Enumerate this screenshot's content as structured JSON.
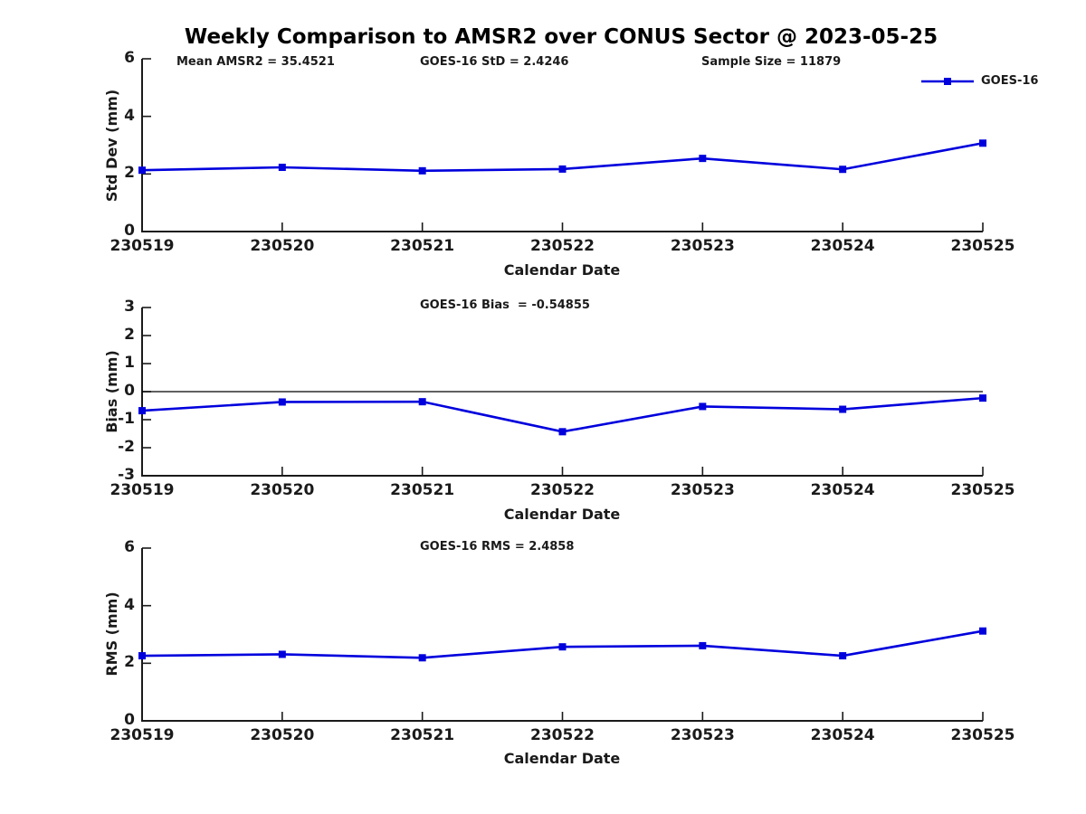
{
  "title": "Weekly Comparison to AMSR2 over CONUS Sector @ 2023-05-25",
  "colors": {
    "series": "#0000dd",
    "axis": "#1a1a1a",
    "zero_line": "#000000"
  },
  "legend": {
    "label": "GOES-16",
    "marker": "square"
  },
  "annotations": {
    "mean": "Mean AMSR2 = 35.4521",
    "std": "GOES-16 StD = 2.4246",
    "sample": "Sample Size = 11879"
  },
  "chart_data": [
    {
      "type": "line",
      "name": "std-dev-vs-date",
      "title": "",
      "ylabel": "Std Dev (mm)",
      "xlabel": "Calendar Date",
      "categories": [
        "230519",
        "230520",
        "230521",
        "230522",
        "230523",
        "230524",
        "230525"
      ],
      "series": [
        {
          "name": "GOES-16",
          "values": [
            2.13,
            2.23,
            2.11,
            2.17,
            2.54,
            2.16,
            3.07
          ]
        }
      ],
      "ylim": [
        0,
        6
      ],
      "yticks": [
        0,
        2,
        4,
        6
      ],
      "zero_line": false,
      "grid": false,
      "legend_position": "top-right"
    },
    {
      "type": "line",
      "name": "bias-vs-date",
      "title": "GOES-16 Bias  = -0.54855",
      "ylabel": "Bias (mm)",
      "xlabel": "Calendar Date",
      "categories": [
        "230519",
        "230520",
        "230521",
        "230522",
        "230523",
        "230524",
        "230525"
      ],
      "series": [
        {
          "name": "GOES-16",
          "values": [
            -0.68,
            -0.37,
            -0.36,
            -1.43,
            -0.53,
            -0.63,
            -0.23
          ]
        }
      ],
      "ylim": [
        -3,
        3
      ],
      "yticks": [
        -3,
        -2,
        -1,
        0,
        1,
        2,
        3
      ],
      "zero_line": true,
      "grid": false
    },
    {
      "type": "line",
      "name": "rms-vs-date",
      "title": "GOES-16 RMS = 2.4858",
      "ylabel": "RMS (mm)",
      "xlabel": "Calendar Date",
      "categories": [
        "230519",
        "230520",
        "230521",
        "230522",
        "230523",
        "230524",
        "230525"
      ],
      "series": [
        {
          "name": "GOES-16",
          "values": [
            2.26,
            2.31,
            2.19,
            2.57,
            2.61,
            2.26,
            3.12
          ]
        }
      ],
      "ylim": [
        0,
        6
      ],
      "yticks": [
        0,
        2,
        4,
        6
      ],
      "zero_line": false,
      "grid": false
    }
  ]
}
